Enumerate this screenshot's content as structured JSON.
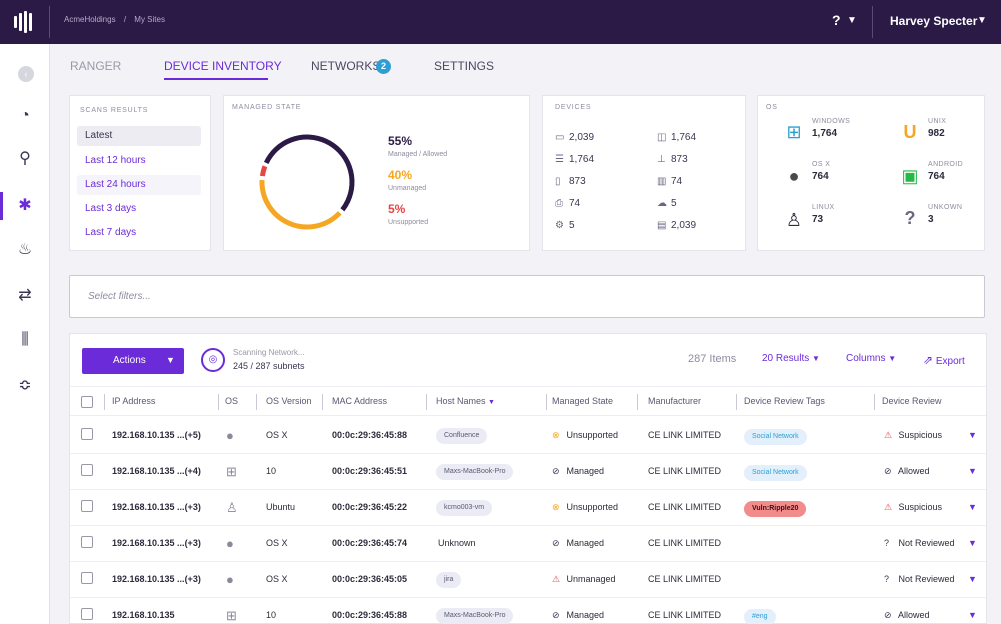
{
  "topbar": {
    "breadcrumb": [
      "AcmeHoldings",
      "/",
      "My Sites"
    ],
    "help_label": "?",
    "user_name": "Harvey Specter"
  },
  "sidebar": {
    "icons": [
      "collapse-icon",
      "gauge-icon",
      "search-icon",
      "asterisk-icon",
      "drop-icon",
      "sync-icon",
      "bars-icon",
      "sliders-icon"
    ]
  },
  "tabs": [
    {
      "label": "RANGER"
    },
    {
      "label": "DEVICE INVENTORY"
    },
    {
      "label": "NETWORKS",
      "badge": "2"
    },
    {
      "label": "SETTINGS"
    }
  ],
  "scans": {
    "title": "SCANS RESULTS",
    "items": [
      "Latest",
      "Last 12 hours",
      "Last 24 hours",
      "Last 3 days",
      "Last 7 days"
    ]
  },
  "managed": {
    "title": "MANAGED STATE",
    "legend": [
      {
        "pct": "55%",
        "label": "Managed / Allowed",
        "color": "#2c1a46"
      },
      {
        "pct": "40%",
        "label": "Unmanaged",
        "color": "#f5a623"
      },
      {
        "pct": "5%",
        "label": "Unsupported",
        "color": "#e94545"
      }
    ],
    "donut_fractions": [
      0.55,
      0.4,
      0.05
    ]
  },
  "devices": {
    "title": "DEVICES",
    "items": [
      {
        "icon": "laptop-icon",
        "value": "2,039"
      },
      {
        "icon": "camera-icon",
        "value": "1,764"
      },
      {
        "icon": "server-icon",
        "value": "1,764"
      },
      {
        "icon": "network-icon",
        "value": "873"
      },
      {
        "icon": "mobile-icon",
        "value": "873"
      },
      {
        "icon": "board-icon",
        "value": "74"
      },
      {
        "icon": "printer-icon",
        "value": "74"
      },
      {
        "icon": "cloud-icon",
        "value": "5"
      },
      {
        "icon": "cog-icon",
        "value": "5"
      },
      {
        "icon": "cash-icon",
        "value": "2,039"
      }
    ]
  },
  "os": {
    "title": "OS",
    "items": [
      {
        "name": "WINDOWS",
        "value": "1,764",
        "icon": "windows-icon",
        "color": "#2e9fd3"
      },
      {
        "name": "UNIX",
        "value": "982",
        "icon": "unix-icon",
        "color": "#f5a623"
      },
      {
        "name": "OS X",
        "value": "764",
        "icon": "apple-icon",
        "color": "#4a4a4a"
      },
      {
        "name": "ANDROID",
        "value": "764",
        "icon": "android-icon",
        "color": "#27b84a"
      },
      {
        "name": "LINUX",
        "value": "73",
        "icon": "linux-icon",
        "color": "#2b2b3a"
      },
      {
        "name": "UNKOWN",
        "value": "3",
        "icon": "unknown-icon",
        "color": "#6a6880"
      }
    ]
  },
  "filter": {
    "placeholder": "Select filters..."
  },
  "toolbar": {
    "actions": "Actions",
    "scan_status": "Scanning Network...",
    "scan_count": "245 / 287 subnets",
    "items": "287 Items",
    "results": "20 Results",
    "columns": "Columns",
    "export": "Export"
  },
  "table": {
    "headers": [
      "IP Address",
      "OS",
      "OS Version",
      "MAC Address",
      "Host Names",
      "Managed State",
      "Manufacturer",
      "Device Review Tags",
      "Device Review"
    ],
    "rows": [
      {
        "ip": "192.168.10.135 ...(+5)",
        "os": "apple-icon",
        "ver": "OS X",
        "mac": "00:0c:29:36:45:88",
        "host": "Confluence",
        "host_pill": true,
        "state": "Unsupported",
        "state_icon": "unsupported-icon",
        "mfr": "CE LINK LIMITED",
        "tag": "Social Network",
        "tag_style": "blue",
        "review": "Suspicious",
        "review_icon": "warning-icon"
      },
      {
        "ip": "192.168.10.135 ...(+4)",
        "os": "windows-icon",
        "ver": "10",
        "mac": "00:0c:29:36:45:51",
        "host": "Maxs-MacBook-Pro",
        "host_pill": true,
        "state": "Managed",
        "state_icon": "check-icon",
        "mfr": "CE LINK LIMITED",
        "tag": "Social Network",
        "tag_style": "blue",
        "review": "Allowed",
        "review_icon": "check-icon"
      },
      {
        "ip": "192.168.10.135 ...(+3)",
        "os": "linux-icon",
        "ver": "Ubuntu",
        "mac": "00:0c:29:36:45:22",
        "host": "kcmo003-vm",
        "host_pill": true,
        "state": "Unsupported",
        "state_icon": "unsupported-icon",
        "mfr": "CE LINK LIMITED",
        "tag": "Vuln:Ripple20",
        "tag_style": "red",
        "review": "Suspicious",
        "review_icon": "warning-icon"
      },
      {
        "ip": "192.168.10.135 ...(+3)",
        "os": "apple-icon",
        "ver": "OS X",
        "mac": "00:0c:29:36:45:74",
        "host": "Unknown",
        "host_pill": false,
        "state": "Managed",
        "state_icon": "check-icon",
        "mfr": "CE LINK LIMITED",
        "tag": "",
        "tag_style": "",
        "review": "Not Reviewed",
        "review_icon": "question-icon"
      },
      {
        "ip": "192.168.10.135 ...(+3)",
        "os": "apple-icon",
        "ver": "OS X",
        "mac": "00:0c:29:36:45:05",
        "host": "jira",
        "host_pill": true,
        "state": "Unmanaged",
        "state_icon": "warning-icon",
        "mfr": "CE LINK LIMITED",
        "tag": "",
        "tag_style": "",
        "review": "Not Reviewed",
        "review_icon": "question-icon"
      },
      {
        "ip": "192.168.10.135",
        "os": "windows-icon",
        "ver": "10",
        "mac": "00:0c:29:36:45:88",
        "host": "Maxs-MacBook-Pro",
        "host_pill": true,
        "state": "Managed",
        "state_icon": "check-icon",
        "mfr": "CE LINK LIMITED",
        "tag": "#eng",
        "tag_style": "blue",
        "review": "Allowed",
        "review_icon": "check-icon"
      }
    ]
  }
}
